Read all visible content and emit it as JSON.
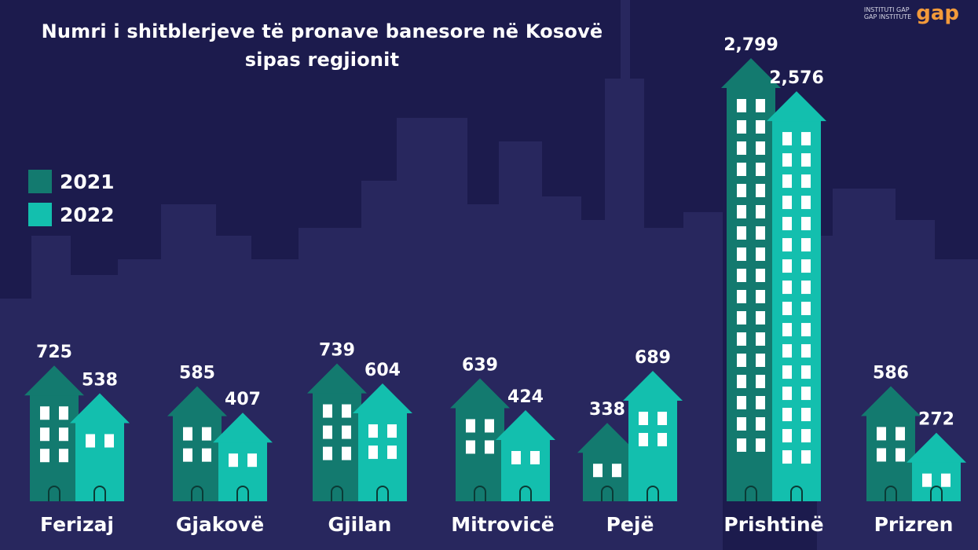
{
  "title_line1": "Numri i shitblerjeve të pronave banesore në Kosovë",
  "title_line2": "sipas regjionit",
  "logo": {
    "line1": "INSTITUTI GAP",
    "line2": "GAP INSTITUTE",
    "mark": "gap"
  },
  "colors": {
    "background": "#1c1b4d",
    "skyline": "#28275e",
    "series_2021": "#137a6f",
    "series_2022": "#13bfae",
    "window": "#ffffff",
    "text": "#ffffff"
  },
  "chart_data": {
    "type": "bar",
    "title": "Numri i shitblerjeve të pronave banesore në Kosovë sipas regjionit",
    "categories": [
      "Ferizaj",
      "Gjakovë",
      "Gjilan",
      "Mitrovicë",
      "Pejë",
      "Prishtinë",
      "Prizren"
    ],
    "series": [
      {
        "name": "2021",
        "values": [
          725,
          585,
          739,
          639,
          338,
          2799,
          586
        ],
        "labels": [
          "725",
          "585",
          "739",
          "639",
          "338",
          "2,799",
          "586"
        ]
      },
      {
        "name": "2022",
        "values": [
          538,
          407,
          604,
          424,
          689,
          2576,
          272
        ],
        "labels": [
          "538",
          "407",
          "604",
          "424",
          "689",
          "2,576",
          "272"
        ]
      }
    ],
    "ylim": [
      0,
      2799
    ],
    "legend": "left",
    "grid": false
  }
}
